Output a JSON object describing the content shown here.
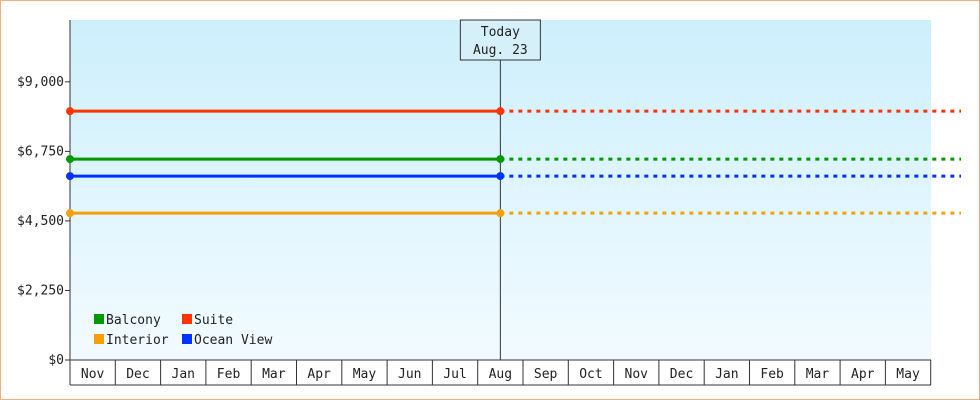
{
  "chart_data": {
    "type": "line",
    "ylim": [
      0,
      11000
    ],
    "y_ticks": [
      {
        "value": 0,
        "label": "$0"
      },
      {
        "value": 2250,
        "label": "$2,250"
      },
      {
        "value": 4500,
        "label": "$4,500"
      },
      {
        "value": 6750,
        "label": "$6,750"
      },
      {
        "value": 9000,
        "label": "$9,000"
      }
    ],
    "x_categories": [
      "Nov",
      "Dec",
      "Jan",
      "Feb",
      "Mar",
      "Apr",
      "May",
      "Jun",
      "Jul",
      "Aug",
      "Sep",
      "Oct",
      "Nov",
      "Dec",
      "Jan",
      "Feb",
      "Mar",
      "Apr",
      "May"
    ],
    "today": {
      "label_line1": "Today",
      "label_line2": "Aug. 23",
      "category_index": 9
    },
    "series": [
      {
        "name": "Suite",
        "color": "#ff3300",
        "value": 8050
      },
      {
        "name": "Balcony",
        "color": "#009900",
        "value": 6500
      },
      {
        "name": "Ocean View",
        "color": "#0033ff",
        "value": 5950
      },
      {
        "name": "Interior",
        "color": "#f5a00a",
        "value": 4750
      }
    ],
    "legend": {
      "position": "bottom-left",
      "rows": [
        [
          "Balcony",
          "Suite"
        ],
        [
          "Interior",
          "Ocean View"
        ]
      ]
    },
    "grid": false,
    "background": [
      "#cdeffc",
      "#f2fbff"
    ]
  }
}
